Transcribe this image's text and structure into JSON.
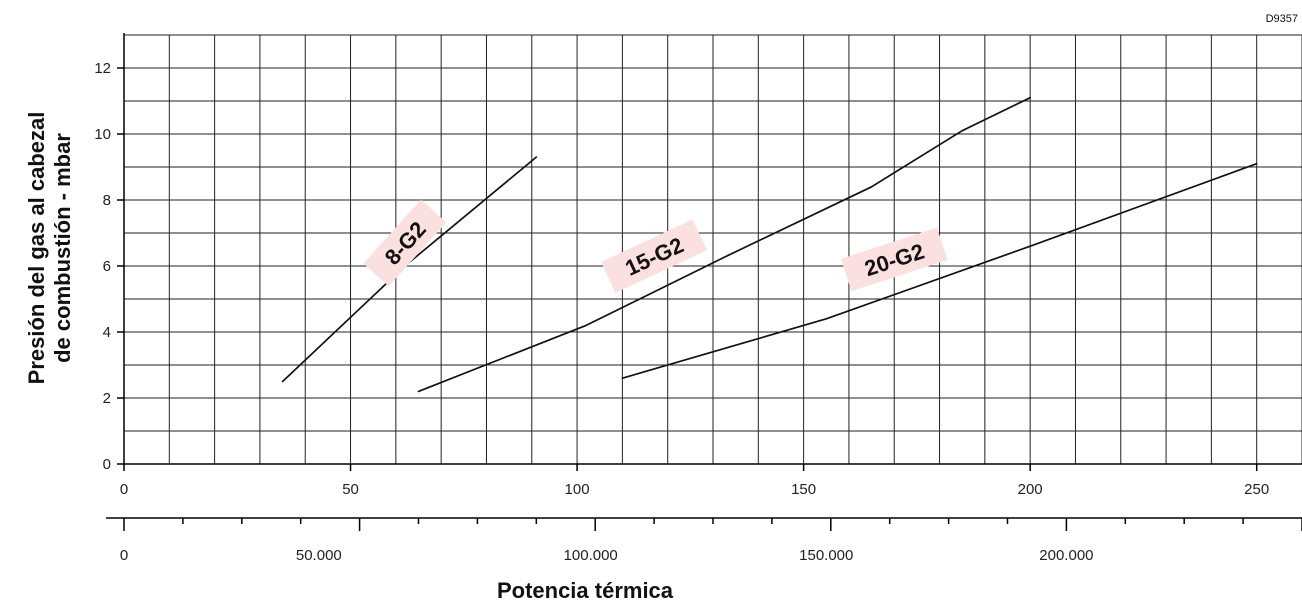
{
  "figure_code": "D9357",
  "chart_data": {
    "type": "line",
    "title": "",
    "xlabel": "Potencia térmica",
    "ylabel": "Presión del gas al cabezal de combustión - mbar",
    "ylabel_lines": [
      "Presión del gas al cabezal",
      "de combustión - mbar"
    ],
    "xlim": [
      0,
      260
    ],
    "ylim": [
      0,
      13
    ],
    "x_ticks": [
      "0",
      "50",
      "100",
      "150",
      "200",
      "250"
    ],
    "x_tick_values": [
      0,
      50,
      100,
      150,
      200,
      250
    ],
    "y_ticks": [
      "0",
      "2",
      "4",
      "6",
      "8",
      "10",
      "12"
    ],
    "y_tick_values": [
      0,
      2,
      4,
      6,
      8,
      10,
      12
    ],
    "secondary_x_axis": {
      "xlim": [
        0,
        260000
      ],
      "ticks": [
        "0",
        "50.000",
        "100.000",
        "150.000",
        "200.000"
      ],
      "tick_values": [
        0,
        43000,
        103000,
        155000,
        208000
      ]
    },
    "grid": true,
    "label_background": "#fbe0e0",
    "line_color": "#111111",
    "series": [
      {
        "name": "8-G2",
        "x": [
          35,
          62,
          91
        ],
        "y": [
          2.5,
          6.0,
          9.3
        ]
      },
      {
        "name": "15-G2",
        "x": [
          65,
          102,
          133,
          165,
          185,
          200
        ],
        "y": [
          2.2,
          4.2,
          6.3,
          8.4,
          10.1,
          11.1
        ]
      },
      {
        "name": "20-G2",
        "x": [
          110,
          155,
          200,
          250
        ],
        "y": [
          2.6,
          4.4,
          6.6,
          9.1
        ]
      }
    ]
  }
}
